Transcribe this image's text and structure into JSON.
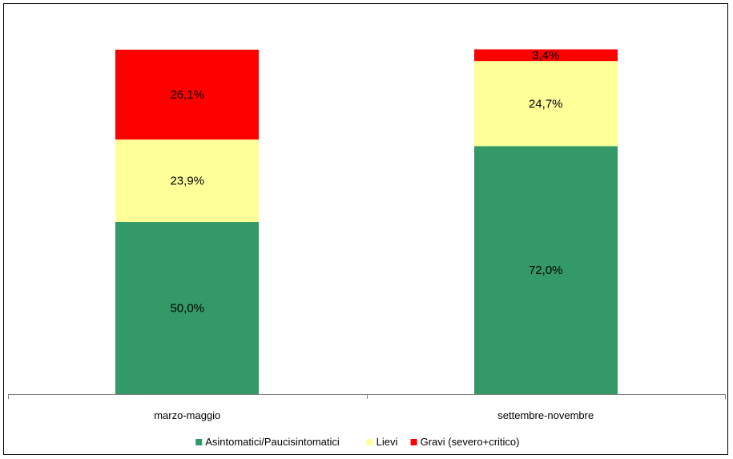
{
  "chart_data": {
    "type": "bar",
    "stacked": true,
    "categories": [
      "marzo-maggio",
      "settembre-novembre"
    ],
    "series": [
      {
        "name": "Asintomatici/Paucisintomatici",
        "values": [
          50.0,
          72.0
        ],
        "labels": [
          "50,0%",
          "72,0%"
        ],
        "color": "#339966"
      },
      {
        "name": "Lievi",
        "values": [
          23.9,
          24.7
        ],
        "labels": [
          "23,9%",
          "24,7%"
        ],
        "color": "#FFFF99"
      },
      {
        "name": "Gravi (severo+critico)",
        "values": [
          26.1,
          3.4
        ],
        "labels": [
          "26,1%",
          "3,4%"
        ],
        "color": "#FF0000"
      }
    ],
    "ylim": [
      0,
      100
    ],
    "grid": false,
    "legend": "bottom",
    "title": "",
    "xlabel": "",
    "ylabel": ""
  }
}
